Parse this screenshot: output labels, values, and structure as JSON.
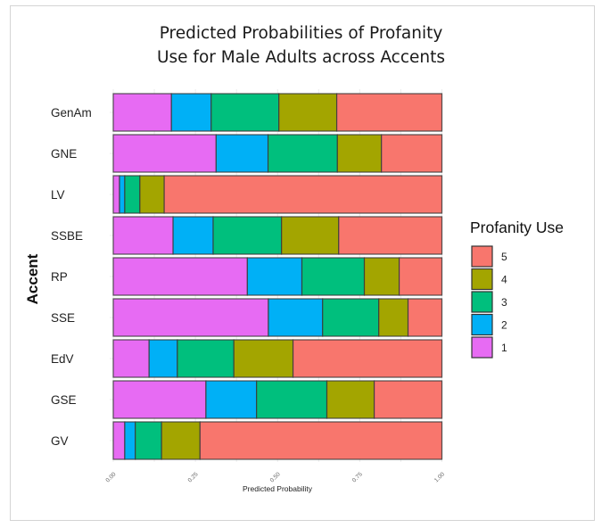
{
  "chart_data": {
    "type": "bar",
    "orientation": "horizontal",
    "stacked": true,
    "title_lines": [
      "Predicted Probabilities of Profanity",
      "Use for Male Adults across Accents"
    ],
    "xlabel": "Predicted Probability",
    "ylabel": "Accent",
    "xlim": [
      0,
      1
    ],
    "xticks": [
      "0.00",
      "0.25",
      "0.50",
      "0.75",
      "1.00"
    ],
    "xtick_values": [
      0,
      0.25,
      0.5,
      0.75,
      1.0
    ],
    "grid": true,
    "categories": [
      "GenAm",
      "GNE",
      "LV",
      "SSBE",
      "RP",
      "SSE",
      "EdV",
      "GSE",
      "GV"
    ],
    "series": [
      {
        "name": "1",
        "color": "#E76BF3",
        "values": [
          0.177,
          0.313,
          0.019,
          0.182,
          0.408,
          0.472,
          0.109,
          0.282,
          0.035
        ]
      },
      {
        "name": "2",
        "color": "#00B0F6",
        "values": [
          0.121,
          0.158,
          0.016,
          0.122,
          0.166,
          0.165,
          0.086,
          0.154,
          0.032
        ]
      },
      {
        "name": "3",
        "color": "#00BF7D",
        "values": [
          0.206,
          0.211,
          0.046,
          0.208,
          0.19,
          0.171,
          0.172,
          0.214,
          0.08
        ]
      },
      {
        "name": "4",
        "color": "#A3A500",
        "values": [
          0.176,
          0.134,
          0.074,
          0.174,
          0.106,
          0.089,
          0.18,
          0.144,
          0.117
        ]
      },
      {
        "name": "5",
        "color": "#F8766D",
        "values": [
          0.32,
          0.184,
          0.845,
          0.314,
          0.13,
          0.103,
          0.453,
          0.206,
          0.736
        ]
      }
    ],
    "legend": {
      "title": "Profanity Use",
      "position": "right",
      "entries": [
        "5",
        "4",
        "3",
        "2",
        "1"
      ]
    }
  }
}
